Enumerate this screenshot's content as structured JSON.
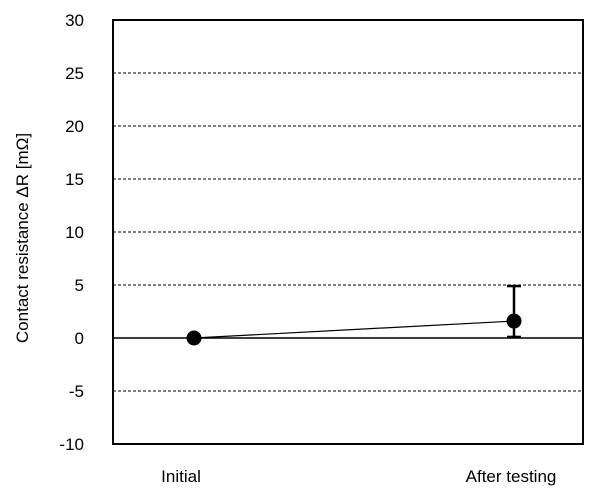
{
  "chart_data": {
    "type": "line",
    "categories": [
      "Initial",
      "After testing"
    ],
    "series": [
      {
        "values": [
          0,
          1.6
        ],
        "error_low": [
          0,
          0.1
        ],
        "error_high": [
          0,
          4.9
        ]
      }
    ],
    "ylabel": "Contact resistance ΔR [mΩ]",
    "xlabel": "",
    "ylim": [
      -10,
      30
    ],
    "yticks": [
      "30",
      "25",
      "20",
      "15",
      "10",
      "5",
      "0",
      "-5",
      "-10"
    ],
    "ytick_values": [
      30,
      25,
      20,
      15,
      10,
      5,
      0,
      -5,
      -10
    ],
    "grid": "horizontal dashed",
    "zero_line": "solid",
    "legend": "none",
    "colors": {
      "line": "#000000",
      "marker": "#000000",
      "grid": "#000000"
    }
  }
}
